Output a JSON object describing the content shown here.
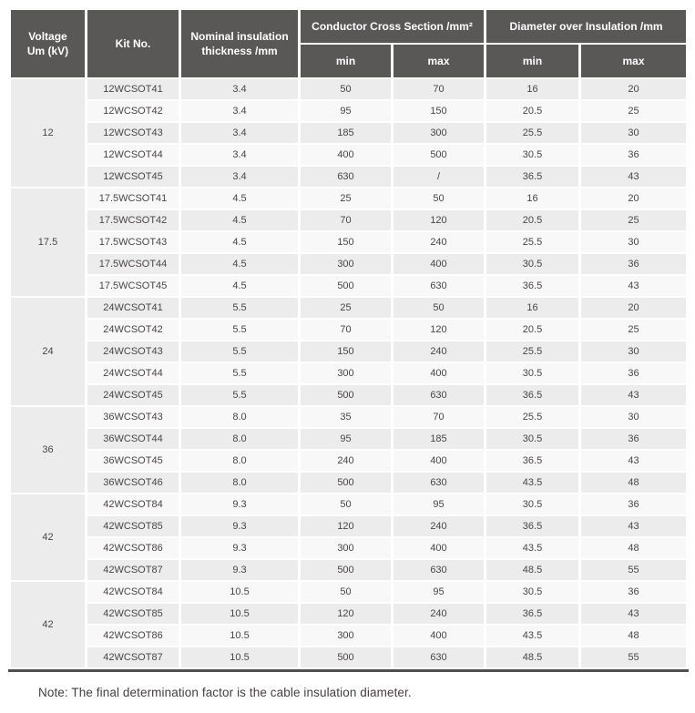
{
  "colors": {
    "header-bg": "#5a5757",
    "header-text": "#ffffff",
    "row-gray": "#ececec",
    "row-light": "#f8f8f8",
    "cell-text": "#4a4545",
    "note-text": "#453e3e",
    "bottom-border": "#514e4e",
    "page-bg": "#ffffff"
  },
  "table": {
    "headers": {
      "voltage_line1": "Voltage",
      "voltage_line2": "Um (kV)",
      "kit_no": "Kit No.",
      "nominal_thickness": "Nominal insulation thickness /mm",
      "conductor_cross_section": "Conductor Cross Section /mm²",
      "diameter_over_insulation": "Diameter over Insulation /mm",
      "min": "min",
      "max": "max"
    },
    "column_names": [
      "kit-no-cell",
      "thickness-cell",
      "ccs-min-cell",
      "ccs-max-cell",
      "dia-min-cell",
      "dia-max-cell"
    ],
    "groups": [
      {
        "voltage": "12",
        "rows": [
          [
            "12WCSOT41",
            "3.4",
            "50",
            "70",
            "16",
            "20"
          ],
          [
            "12WCSOT42",
            "3.4",
            "95",
            "150",
            "20.5",
            "25"
          ],
          [
            "12WCSOT43",
            "3.4",
            "185",
            "300",
            "25.5",
            "30"
          ],
          [
            "12WCSOT44",
            "3.4",
            "400",
            "500",
            "30.5",
            "36"
          ],
          [
            "12WCSOT45",
            "3.4",
            "630",
            "/",
            "36.5",
            "43"
          ]
        ]
      },
      {
        "voltage": "17.5",
        "rows": [
          [
            "17.5WCSOT41",
            "4.5",
            "25",
            "50",
            "16",
            "20"
          ],
          [
            "17.5WCSOT42",
            "4.5",
            "70",
            "120",
            "20.5",
            "25"
          ],
          [
            "17.5WCSOT43",
            "4.5",
            "150",
            "240",
            "25.5",
            "30"
          ],
          [
            "17.5WCSOT44",
            "4.5",
            "300",
            "400",
            "30.5",
            "36"
          ],
          [
            "17.5WCSOT45",
            "4.5",
            "500",
            "630",
            "36.5",
            "43"
          ]
        ]
      },
      {
        "voltage": "24",
        "rows": [
          [
            "24WCSOT41",
            "5.5",
            "25",
            "50",
            "16",
            "20"
          ],
          [
            "24WCSOT42",
            "5.5",
            "70",
            "120",
            "20.5",
            "25"
          ],
          [
            "24WCSOT43",
            "5.5",
            "150",
            "240",
            "25.5",
            "30"
          ],
          [
            "24WCSOT44",
            "5.5",
            "300",
            "400",
            "30.5",
            "36"
          ],
          [
            "24WCSOT45",
            "5.5",
            "500",
            "630",
            "36.5",
            "43"
          ]
        ]
      },
      {
        "voltage": "36",
        "rows": [
          [
            "36WCSOT43",
            "8.0",
            "35",
            "70",
            "25.5",
            "30"
          ],
          [
            "36WCSOT44",
            "8.0",
            "95",
            "185",
            "30.5",
            "36"
          ],
          [
            "36WCSOT45",
            "8.0",
            "240",
            "400",
            "36.5",
            "43"
          ],
          [
            "36WCSOT46",
            "8.0",
            "500",
            "630",
            "43.5",
            "48"
          ]
        ]
      },
      {
        "voltage": "42",
        "rows": [
          [
            "42WCSOT84",
            "9.3",
            "50",
            "95",
            "30.5",
            "36"
          ],
          [
            "42WCSOT85",
            "9.3",
            "120",
            "240",
            "36.5",
            "43"
          ],
          [
            "42WCSOT86",
            "9.3",
            "300",
            "400",
            "43.5",
            "48"
          ],
          [
            "42WCSOT87",
            "9.3",
            "500",
            "630",
            "48.5",
            "55"
          ]
        ]
      },
      {
        "voltage": "42",
        "rows": [
          [
            "42WCSOT84",
            "10.5",
            "50",
            "95",
            "30.5",
            "36"
          ],
          [
            "42WCSOT85",
            "10.5",
            "120",
            "240",
            "36.5",
            "43"
          ],
          [
            "42WCSOT86",
            "10.5",
            "300",
            "400",
            "43.5",
            "48"
          ],
          [
            "42WCSOT87",
            "10.5",
            "500",
            "630",
            "48.5",
            "55"
          ]
        ]
      }
    ]
  },
  "note": "Note: The final determination factor is the cable insulation diameter."
}
